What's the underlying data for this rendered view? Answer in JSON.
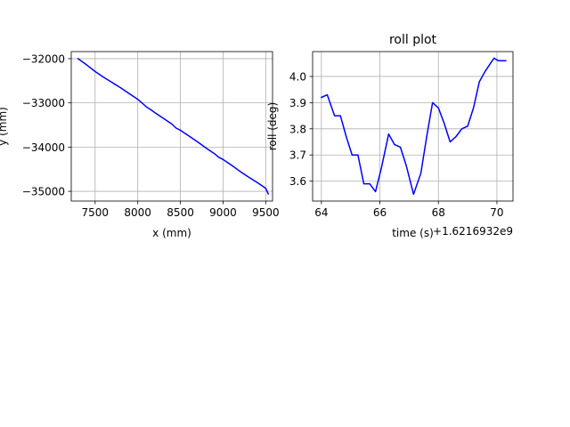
{
  "chart_data": [
    {
      "type": "line",
      "title": "",
      "xlabel": "x (mm)",
      "ylabel": "y (mm)",
      "xlim": [
        7220,
        9580
      ],
      "ylim": [
        -35220,
        -31840
      ],
      "xticks": [
        7500,
        8000,
        8500,
        9000,
        9500
      ],
      "xtick_labels": [
        "7500",
        "8000",
        "8500",
        "9000",
        "9500"
      ],
      "yticks": [
        -32000,
        -33000,
        -34000,
        -35000
      ],
      "ytick_labels": [
        "−32000",
        "−33000",
        "−34000",
        "−35000"
      ],
      "x_offset_label": "",
      "grid": true,
      "series": [
        {
          "color": "#0000ff",
          "x": [
            7300,
            7400,
            7500,
            7600,
            7700,
            7800,
            7900,
            8000,
            8050,
            8100,
            8150,
            8200,
            8300,
            8400,
            8450,
            8500,
            8600,
            8700,
            8800,
            8900,
            8950,
            9000,
            9100,
            9200,
            9300,
            9400,
            9500,
            9530
          ],
          "y": [
            -32000,
            -32140,
            -32290,
            -32420,
            -32540,
            -32660,
            -32790,
            -32920,
            -33000,
            -33090,
            -33150,
            -33220,
            -33350,
            -33480,
            -33570,
            -33620,
            -33750,
            -33880,
            -34020,
            -34150,
            -34230,
            -34280,
            -34410,
            -34550,
            -34680,
            -34800,
            -34930,
            -35060
          ]
        }
      ]
    },
    {
      "type": "line",
      "title": "roll plot",
      "xlabel": "time (s)",
      "ylabel": "roll (deg)",
      "xlim": [
        63.7,
        70.55
      ],
      "ylim": [
        3.524,
        4.095
      ],
      "xticks": [
        64,
        66,
        68,
        70
      ],
      "xtick_labels": [
        "64",
        "66",
        "68",
        "70"
      ],
      "yticks": [
        3.6,
        3.7,
        3.8,
        3.9,
        4.0
      ],
      "ytick_labels": [
        "3.6",
        "3.7",
        "3.8",
        "3.9",
        "4.0"
      ],
      "x_offset_label": "+1.6216932e9",
      "grid": true,
      "series": [
        {
          "color": "#0000ff",
          "x": [
            64.0,
            64.2,
            64.45,
            64.65,
            64.85,
            65.05,
            65.25,
            65.45,
            65.65,
            65.85,
            66.05,
            66.3,
            66.5,
            66.7,
            66.9,
            67.15,
            67.4,
            67.6,
            67.8,
            68.0,
            68.2,
            68.4,
            68.6,
            68.8,
            69.0,
            69.2,
            69.4,
            69.6,
            69.9,
            70.05,
            70.3
          ],
          "y": [
            3.92,
            3.93,
            3.85,
            3.85,
            3.77,
            3.7,
            3.7,
            3.59,
            3.59,
            3.56,
            3.65,
            3.78,
            3.74,
            3.73,
            3.66,
            3.55,
            3.63,
            3.77,
            3.9,
            3.88,
            3.82,
            3.75,
            3.77,
            3.8,
            3.81,
            3.88,
            3.98,
            4.02,
            4.07,
            4.06,
            4.06
          ]
        }
      ]
    }
  ]
}
